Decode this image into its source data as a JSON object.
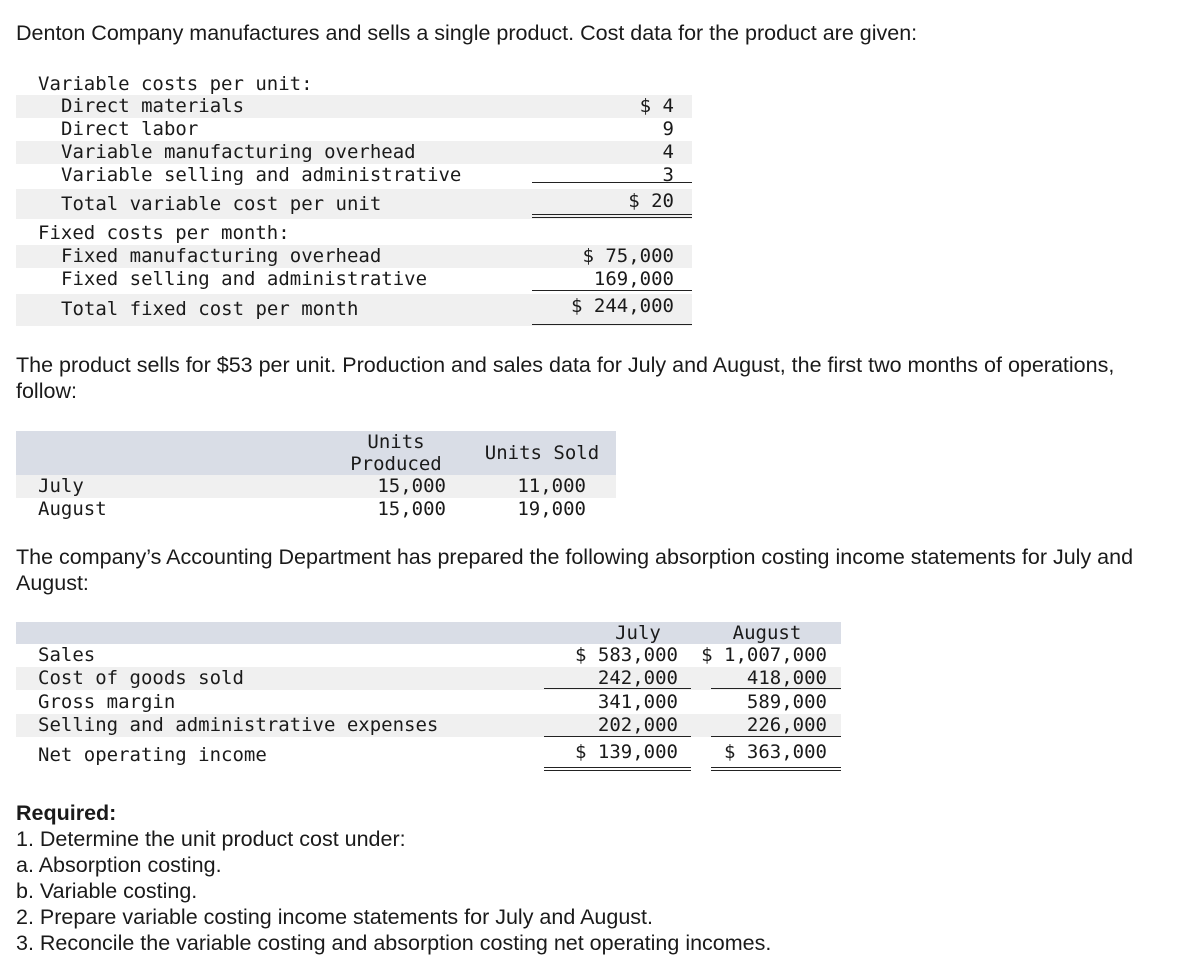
{
  "intro": "Denton Company manufactures and sells a single product. Cost data for the product are given:",
  "cost_table": {
    "variable_heading": "Variable costs per unit:",
    "variable_items": [
      {
        "label": "Direct materials",
        "value": "$ 4"
      },
      {
        "label": "Direct labor",
        "value": "9"
      },
      {
        "label": "Variable manufacturing overhead",
        "value": "4"
      },
      {
        "label": "Variable selling and administrative",
        "value": "3"
      }
    ],
    "total_variable": {
      "label": "Total variable cost per unit",
      "value": "$ 20"
    },
    "fixed_heading": "Fixed costs per month:",
    "fixed_items": [
      {
        "label": "Fixed manufacturing overhead",
        "value": "$ 75,000"
      },
      {
        "label": "Fixed selling and administrative",
        "value": "169,000"
      }
    ],
    "total_fixed": {
      "label": "Total fixed cost per month",
      "value": "$ 244,000"
    }
  },
  "para2": "The product sells for $53 per unit. Production and sales data for July and August, the first two months of operations, follow:",
  "production_table": {
    "col_produced_line1": "Units",
    "col_produced_line2": "Produced",
    "col_sold": "Units Sold",
    "rows": [
      {
        "month": "July",
        "produced": "15,000",
        "sold": "11,000"
      },
      {
        "month": "August",
        "produced": "15,000",
        "sold": "19,000"
      }
    ]
  },
  "para3": "The company’s Accounting Department has prepared the following absorption costing income statements for July and August:",
  "income_table": {
    "col_july": "July",
    "col_august": "August",
    "rows": [
      {
        "label": "Sales",
        "july": "$ 583,000",
        "august": "$ 1,007,000"
      },
      {
        "label": "Cost of goods sold",
        "july": "242,000",
        "august": "418,000"
      },
      {
        "label": "Gross margin",
        "july": "341,000",
        "august": "589,000"
      },
      {
        "label": "Selling and administrative expenses",
        "july": "202,000",
        "august": "226,000"
      },
      {
        "label": "Net operating income",
        "july": "$ 139,000",
        "august": "$ 363,000"
      }
    ]
  },
  "required": {
    "heading": "Required:",
    "items": [
      "1. Determine the unit product cost under:",
      "a. Absorption costing.",
      "b. Variable costing.",
      "2. Prepare variable costing income statements for July and August.",
      "3. Reconcile the variable costing and absorption costing net operating incomes."
    ]
  }
}
